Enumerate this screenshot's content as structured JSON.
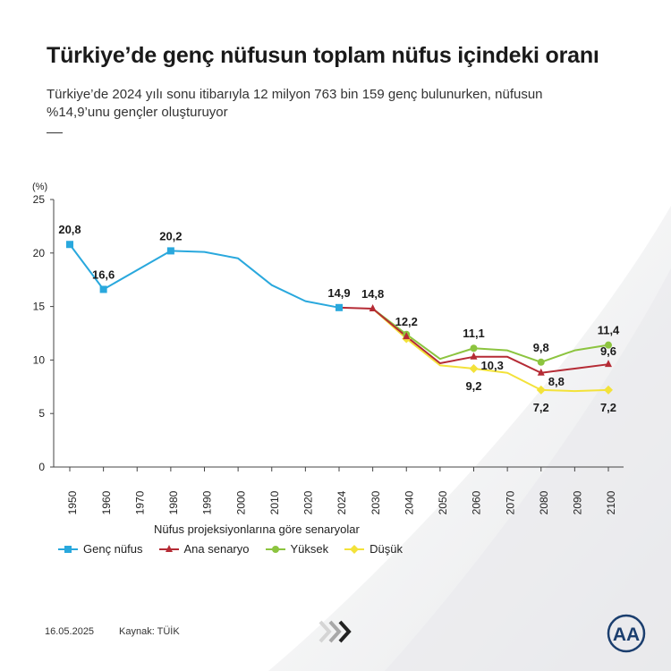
{
  "title": "Türkiye’de genç nüfusun toplam nüfus içindeki oranı",
  "subtitle": "Türkiye’de 2024 yılı sonu itibarıyla 12 milyon 763 bin 159 genç bulunurken, nüfusun %14,9’unu gençler oluşturuyor",
  "legend_title": "Nüfus projeksiyonlarına göre senaryolar",
  "footer": {
    "date": "16.05.2025",
    "source": "Kaynak: TÜİK"
  },
  "logo_text": "AA",
  "chart_data": {
    "type": "line",
    "ylabel": "(%)",
    "ylim": [
      0,
      25
    ],
    "yticks": [
      0,
      5,
      10,
      15,
      20,
      25
    ],
    "categories": [
      "1950",
      "1960",
      "1970",
      "1980",
      "1990",
      "2000",
      "2010",
      "2020",
      "2024",
      "2030",
      "2040",
      "2050",
      "2060",
      "2070",
      "2080",
      "2090",
      "2100"
    ],
    "grid": false,
    "legend_position": "bottom",
    "series": [
      {
        "name": "Genç nüfus",
        "color": "#29a8dd",
        "marker": "square",
        "values": [
          20.8,
          16.6,
          null,
          20.2,
          20.1,
          19.5,
          17.0,
          15.5,
          14.9,
          null,
          null,
          null,
          null,
          null,
          null,
          null,
          null
        ],
        "markers_at": [
          0,
          1,
          3,
          8
        ]
      },
      {
        "name": "Ana senaryo",
        "color": "#b52b35",
        "marker": "triangle",
        "values": [
          null,
          null,
          null,
          null,
          null,
          null,
          null,
          null,
          14.9,
          14.8,
          12.2,
          9.7,
          10.3,
          10.3,
          8.8,
          9.2,
          9.6
        ],
        "markers_at": [
          9,
          10,
          12,
          14,
          16
        ]
      },
      {
        "name": "Yüksek",
        "color": "#8cc43f",
        "marker": "circle",
        "values": [
          null,
          null,
          null,
          null,
          null,
          null,
          null,
          null,
          null,
          14.8,
          12.4,
          10.1,
          11.1,
          10.9,
          9.8,
          10.9,
          11.4
        ],
        "markers_at": [
          10,
          12,
          14,
          16
        ]
      },
      {
        "name": "Düşük",
        "color": "#f3e23a",
        "marker": "diamond",
        "values": [
          null,
          null,
          null,
          null,
          null,
          null,
          null,
          null,
          null,
          14.8,
          12.0,
          9.5,
          9.2,
          8.8,
          7.2,
          7.1,
          7.2
        ],
        "markers_at": [
          10,
          12,
          14,
          16
        ]
      }
    ],
    "annotations": [
      {
        "x": "1950",
        "y": 20.8,
        "text": "20,8",
        "pos": "above"
      },
      {
        "x": "1960",
        "y": 16.6,
        "text": "16,6",
        "pos": "above"
      },
      {
        "x": "1980",
        "y": 20.2,
        "text": "20,2",
        "pos": "above"
      },
      {
        "x": "2024",
        "y": 14.9,
        "text": "14,9",
        "pos": "above"
      },
      {
        "x": "2030",
        "y": 14.8,
        "text": "14,8",
        "pos": "above"
      },
      {
        "x": "2040",
        "y": 12.2,
        "text": "12,2",
        "pos": "above"
      },
      {
        "x": "2060",
        "y": 11.1,
        "text": "11,1",
        "pos": "above"
      },
      {
        "x": "2060",
        "y": 10.3,
        "text": "10,3",
        "pos": "below-right"
      },
      {
        "x": "2060",
        "y": 9.2,
        "text": "9,2",
        "pos": "below"
      },
      {
        "x": "2080",
        "y": 9.8,
        "text": "9,8",
        "pos": "above"
      },
      {
        "x": "2080",
        "y": 8.8,
        "text": "8,8",
        "pos": "below-right"
      },
      {
        "x": "2080",
        "y": 7.2,
        "text": "7,2",
        "pos": "below"
      },
      {
        "x": "2100",
        "y": 11.4,
        "text": "11,4",
        "pos": "above"
      },
      {
        "x": "2100",
        "y": 9.6,
        "text": "9,6",
        "pos": "above-low"
      },
      {
        "x": "2100",
        "y": 7.2,
        "text": "7,2",
        "pos": "below"
      }
    ]
  }
}
